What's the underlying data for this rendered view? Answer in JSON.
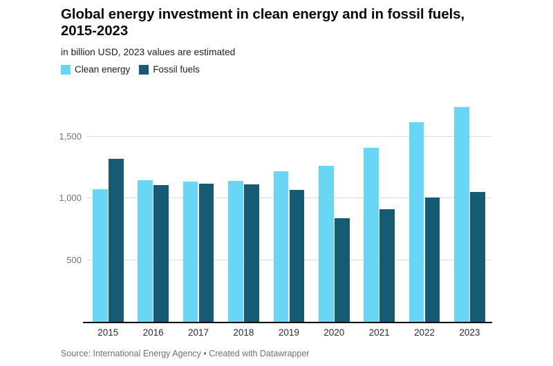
{
  "header": {
    "title_line1": "Global energy investment in clean energy and in fossil fuels,",
    "title_line2": "2015-2023",
    "subtitle": "in billion USD, 2023 values are estimated"
  },
  "legend": {
    "items": [
      {
        "label": "Clean energy",
        "color": "#68d6f4"
      },
      {
        "label": "Fossil fuels",
        "color": "#175a73"
      }
    ]
  },
  "chart_data": {
    "type": "bar",
    "title": "Global energy investment in clean energy and in fossil fuels, 2015-2023",
    "subtitle": "in billion USD, 2023 values are estimated",
    "unit": "billion USD",
    "categories": [
      "2015",
      "2016",
      "2017",
      "2018",
      "2019",
      "2020",
      "2021",
      "2022",
      "2023"
    ],
    "series": [
      {
        "name": "Clean energy",
        "color": "#68d6f4",
        "values": [
          1073,
          1147,
          1138,
          1142,
          1218,
          1263,
          1409,
          1617,
          1740
        ]
      },
      {
        "name": "Fossil fuels",
        "color": "#175a73",
        "values": [
          1322,
          1106,
          1120,
          1114,
          1070,
          840,
          914,
          1006,
          1050
        ]
      }
    ],
    "ylim": [
      0,
      1768
    ],
    "y_ticks": [
      500,
      1000,
      1500
    ],
    "y_tick_labels": [
      "500",
      "1,000",
      "1,500"
    ],
    "grid": true,
    "legend_position": "top-left",
    "xlabel": "",
    "ylabel": ""
  },
  "footer": {
    "source": "Source: International Energy Agency • Created with Datawrapper"
  },
  "colors": {
    "background": "#ffffff",
    "axis": "#000000",
    "gridline": "#dadada",
    "y_label": "#757575",
    "x_label": "#2a2a2a",
    "clean_energy": "#68d6f4",
    "fossil_fuels": "#175a73",
    "source_text": "#707070"
  }
}
